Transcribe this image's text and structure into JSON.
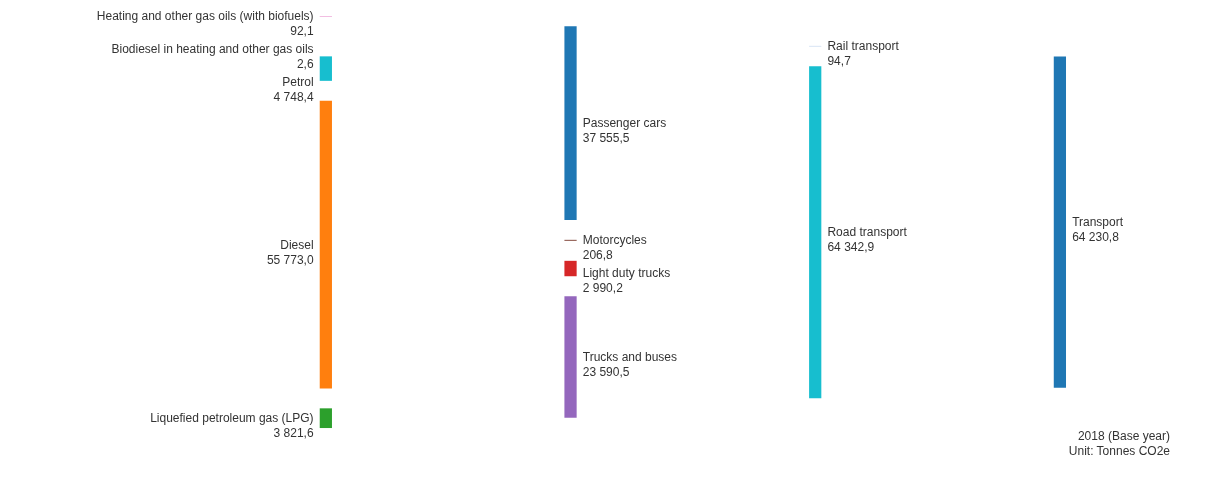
{
  "chart_data": {
    "type": "other",
    "categories": [
      "Heating and other gas oils (with biofuels)",
      "Biodiesel in heating and other gas oils",
      "Petrol",
      "Diesel",
      "Liquefied petroleum gas (LPG)",
      "Passenger cars",
      "Motorcycles",
      "Light duty trucks",
      "Trucks and buses",
      "Rail transport",
      "Road transport",
      "Transport"
    ],
    "values": [
      92.1,
      2.6,
      4748.4,
      55773.0,
      3821.6,
      37555.5,
      206.8,
      2990.2,
      23590.5,
      94.7,
      64342.9,
      64230.8
    ],
    "value_labels": [
      "92,1",
      "2,6",
      "4 748,4",
      "55 773,0",
      "3 821,6",
      "37 555,5",
      "206,8",
      "2 990,2",
      "23 590,5",
      "94,7",
      "64 342,9",
      "64 230,8"
    ],
    "colors": [
      "#e377c2",
      "#bcbd22",
      "#17becf",
      "#ff7f0e",
      "#2ca02c",
      "#1f77b4",
      "#8c564b",
      "#d62728",
      "#9467bd",
      "#aec7e8",
      "#17becf",
      "#1f77b4"
    ],
    "annotations": [
      "2018 (Base year)",
      "Unit: Tonnes CO2e"
    ]
  }
}
